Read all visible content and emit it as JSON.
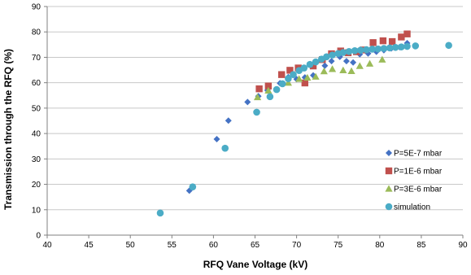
{
  "chart_data": {
    "type": "scatter",
    "xlabel": "RFQ Vane Voltage (kV)",
    "ylabel": "Transmission through the RFQ (%)",
    "xlim": [
      40,
      90
    ],
    "ylim": [
      0,
      90
    ],
    "x_ticks": [
      40,
      45,
      50,
      55,
      60,
      65,
      70,
      75,
      80,
      85,
      90
    ],
    "y_ticks": [
      0,
      10,
      20,
      30,
      40,
      50,
      60,
      70,
      80,
      90
    ],
    "x_tick_labels": [
      "40",
      "45",
      "50",
      "55",
      "60",
      "65",
      "70",
      "75",
      "80",
      "85",
      "90"
    ],
    "y_tick_labels": [
      "0",
      "10",
      "20",
      "30",
      "40",
      "50",
      "60",
      "70",
      "80",
      "90"
    ],
    "grid": "horizontal",
    "legend_position": "right",
    "series": [
      {
        "name": "P=5E-7 mbar",
        "marker": "diamond",
        "color": "#4472c4",
        "points": [
          [
            57.1,
            17.5
          ],
          [
            60.4,
            37.8
          ],
          [
            61.8,
            45.1
          ],
          [
            64.1,
            52.4
          ],
          [
            65.4,
            54.7
          ],
          [
            66.5,
            57.0
          ],
          [
            68.0,
            59.8
          ],
          [
            69.0,
            62.2
          ],
          [
            70.0,
            61.4
          ],
          [
            71.0,
            62.1
          ],
          [
            72.0,
            62.9
          ],
          [
            73.4,
            66.7
          ],
          [
            74.2,
            68.5
          ],
          [
            75.2,
            70.2
          ],
          [
            76.0,
            68.5
          ],
          [
            76.8,
            68.0
          ],
          [
            77.6,
            71.2
          ],
          [
            78.6,
            71.5
          ],
          [
            79.6,
            72.2
          ],
          [
            80.5,
            72.8
          ],
          [
            81.4,
            73.5
          ],
          [
            82.4,
            74.0
          ],
          [
            83.3,
            75.6
          ]
        ]
      },
      {
        "name": "P=1E-6 mbar",
        "marker": "square",
        "color": "#c0504d",
        "points": [
          [
            65.5,
            57.6
          ],
          [
            66.6,
            58.7
          ],
          [
            68.2,
            63.2
          ],
          [
            69.2,
            64.9
          ],
          [
            70.2,
            65.8
          ],
          [
            71.0,
            59.9
          ],
          [
            72.0,
            66.6
          ],
          [
            73.1,
            69.1
          ],
          [
            74.2,
            71.4
          ],
          [
            75.3,
            72.5
          ],
          [
            76.2,
            71.8
          ],
          [
            77.2,
            72.2
          ],
          [
            78.0,
            72.9
          ],
          [
            79.2,
            75.8
          ],
          [
            80.4,
            76.5
          ],
          [
            81.5,
            76.2
          ],
          [
            82.6,
            78.0
          ],
          [
            83.3,
            79.2
          ]
        ]
      },
      {
        "name": "P=3E-6 mbar",
        "marker": "triangle",
        "color": "#9bbb59",
        "points": [
          [
            65.3,
            54.3
          ],
          [
            66.6,
            56.9
          ],
          [
            69.0,
            60.0
          ],
          [
            70.3,
            61.5
          ],
          [
            71.3,
            62.0
          ],
          [
            72.3,
            62.4
          ],
          [
            73.3,
            64.5
          ],
          [
            74.3,
            65.4
          ],
          [
            75.6,
            64.9
          ],
          [
            76.6,
            64.6
          ],
          [
            77.6,
            66.6
          ],
          [
            78.8,
            67.5
          ],
          [
            80.3,
            69.1
          ]
        ]
      },
      {
        "name": "simulation",
        "marker": "circle",
        "color": "#4bacc6",
        "points": [
          [
            53.6,
            8.7
          ],
          [
            57.5,
            19.0
          ],
          [
            61.4,
            34.2
          ],
          [
            65.2,
            48.4
          ],
          [
            66.8,
            54.5
          ],
          [
            67.6,
            57.3
          ],
          [
            68.3,
            59.6
          ],
          [
            69.0,
            61.6
          ],
          [
            69.6,
            63.2
          ],
          [
            70.3,
            64.8
          ],
          [
            70.9,
            65.8
          ],
          [
            71.6,
            67.2
          ],
          [
            72.3,
            68.2
          ],
          [
            73.0,
            69.3
          ],
          [
            73.6,
            70.2
          ],
          [
            74.3,
            70.9
          ],
          [
            75.0,
            71.5
          ],
          [
            75.6,
            71.9
          ],
          [
            76.3,
            72.3
          ],
          [
            77.0,
            72.6
          ],
          [
            77.7,
            72.8
          ],
          [
            78.4,
            73.0
          ],
          [
            79.1,
            73.2
          ],
          [
            79.8,
            73.3
          ],
          [
            80.5,
            73.5
          ],
          [
            81.2,
            73.7
          ],
          [
            81.9,
            73.9
          ],
          [
            82.6,
            74.1
          ],
          [
            83.3,
            74.3
          ],
          [
            84.3,
            74.5
          ],
          [
            88.3,
            74.7
          ]
        ]
      }
    ]
  }
}
